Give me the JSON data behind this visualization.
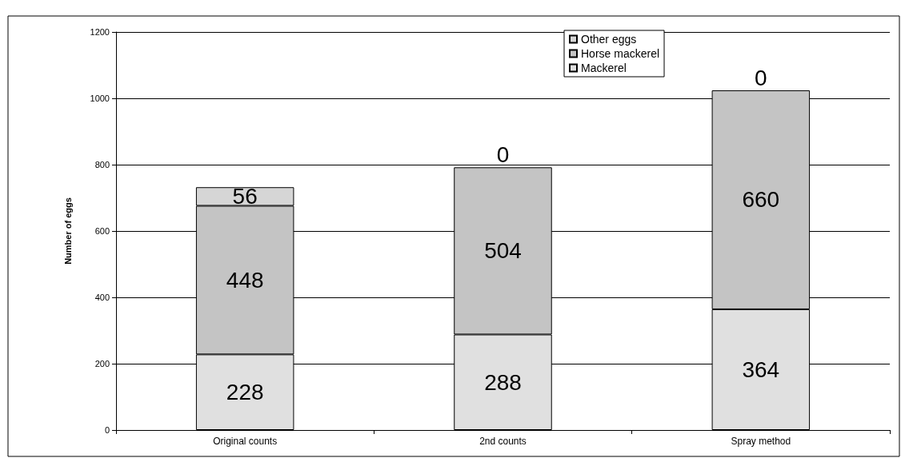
{
  "chart_data": {
    "type": "bar",
    "stacked": true,
    "ylabel": "Number of eggs",
    "categories": [
      "Original counts",
      "2nd counts",
      "Spray method"
    ],
    "series": [
      {
        "name": "Mackerel",
        "color": "#e0e0e0",
        "values": [
          228,
          288,
          364
        ]
      },
      {
        "name": "Horse mackerel",
        "color": "#c4c4c4",
        "values": [
          448,
          504,
          660
        ]
      },
      {
        "name": "Other eggs",
        "color": "#d6d6d6",
        "values": [
          56,
          0,
          0
        ]
      }
    ],
    "ylim": [
      0,
      1200
    ],
    "yticks": [
      0,
      200,
      400,
      600,
      800,
      1000,
      1200
    ],
    "grid": "y",
    "legend": "top right",
    "data_labels": true
  }
}
